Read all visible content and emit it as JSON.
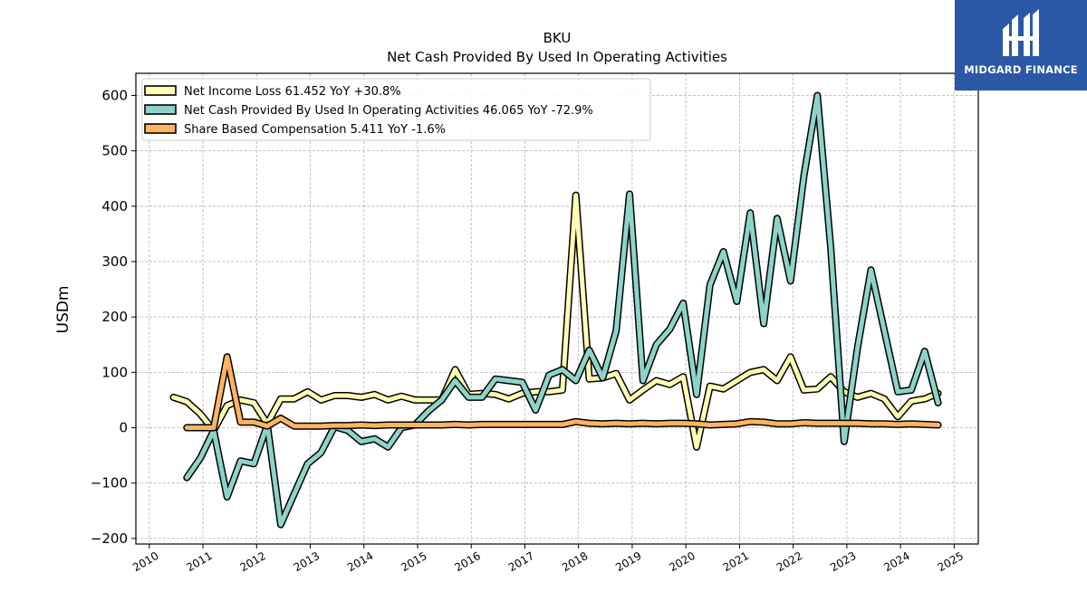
{
  "brand": {
    "name": "MIDGARD FINANCE",
    "color": "#2b58a6"
  },
  "chart_data": {
    "type": "line",
    "title": "BKU",
    "subtitle": "Net Cash Provided By Used In Operating Activities",
    "ylabel": "USDm",
    "xlabel": "",
    "xlim": [
      2009.75,
      2025.45
    ],
    "ylim": [
      -210,
      640
    ],
    "yticks": [
      -200,
      -100,
      0,
      100,
      200,
      300,
      400,
      500,
      600
    ],
    "ytick_labels": [
      "−200",
      "−100",
      "0",
      "100",
      "200",
      "300",
      "400",
      "500",
      "600"
    ],
    "xticks": [
      2010,
      2011,
      2012,
      2013,
      2014,
      2015,
      2016,
      2017,
      2018,
      2019,
      2020,
      2021,
      2022,
      2023,
      2024,
      2025
    ],
    "xtick_labels": [
      "2010",
      "2011",
      "2012",
      "2013",
      "2014",
      "2015",
      "2016",
      "2017",
      "2018",
      "2019",
      "2020",
      "2021",
      "2022",
      "2023",
      "2024",
      "2025"
    ],
    "grid": true,
    "legend_position": "top-left",
    "series": [
      {
        "name": "Net Income Loss",
        "legend_label": "Net Income Loss  61.452 YoY +30.8%",
        "color": "#ffffb3",
        "x": [
          2010.45,
          2010.7,
          2010.95,
          2011.2,
          2011.45,
          2011.7,
          2011.95,
          2012.2,
          2012.45,
          2012.7,
          2012.95,
          2013.2,
          2013.45,
          2013.7,
          2013.95,
          2014.2,
          2014.45,
          2014.7,
          2014.95,
          2015.2,
          2015.45,
          2015.7,
          2015.95,
          2016.2,
          2016.45,
          2016.7,
          2016.95,
          2017.2,
          2017.45,
          2017.7,
          2017.95,
          2018.2,
          2018.45,
          2018.7,
          2018.95,
          2019.2,
          2019.45,
          2019.7,
          2019.95,
          2020.2,
          2020.45,
          2020.7,
          2020.95,
          2021.2,
          2021.45,
          2021.7,
          2021.95,
          2022.2,
          2022.45,
          2022.7,
          2022.95,
          2023.2,
          2023.45,
          2023.7,
          2023.95,
          2024.2,
          2024.45,
          2024.7
        ],
        "values": [
          55,
          47,
          25,
          -5,
          40,
          50,
          45,
          7,
          52,
          52,
          65,
          50,
          58,
          58,
          55,
          60,
          50,
          57,
          50,
          50,
          50,
          105,
          60,
          62,
          60,
          52,
          62,
          65,
          65,
          68,
          420,
          88,
          90,
          98,
          50,
          68,
          85,
          78,
          92,
          -35,
          75,
          70,
          85,
          100,
          105,
          85,
          128,
          68,
          70,
          92,
          65,
          55,
          62,
          52,
          20,
          48,
          52,
          62
        ]
      },
      {
        "name": "Net Cash Provided By Used In Operating Activities",
        "legend_label": "Net Cash Provided By Used In Operating Activities  46.065 YoY -72.9%",
        "color": "#8dd3c7",
        "x": [
          2010.7,
          2010.95,
          2011.2,
          2011.45,
          2011.7,
          2011.95,
          2012.2,
          2012.45,
          2012.7,
          2012.95,
          2013.2,
          2013.45,
          2013.7,
          2013.95,
          2014.2,
          2014.45,
          2014.7,
          2014.95,
          2015.2,
          2015.45,
          2015.7,
          2015.95,
          2016.2,
          2016.45,
          2016.7,
          2016.95,
          2017.2,
          2017.45,
          2017.7,
          2017.95,
          2018.2,
          2018.45,
          2018.7,
          2018.95,
          2019.2,
          2019.45,
          2019.7,
          2019.95,
          2020.2,
          2020.45,
          2020.7,
          2020.95,
          2021.2,
          2021.45,
          2021.7,
          2021.95,
          2022.2,
          2022.45,
          2022.7,
          2022.95,
          2023.2,
          2023.45,
          2023.7,
          2023.95,
          2024.2,
          2024.45,
          2024.7
        ],
        "values": [
          -90,
          -55,
          -5,
          -125,
          -60,
          -65,
          5,
          -175,
          -120,
          -65,
          -45,
          2,
          -5,
          -25,
          -20,
          -35,
          0,
          5,
          30,
          50,
          85,
          55,
          55,
          88,
          85,
          82,
          32,
          95,
          105,
          85,
          140,
          90,
          175,
          422,
          85,
          150,
          178,
          225,
          60,
          258,
          318,
          228,
          388,
          188,
          378,
          265,
          455,
          600,
          325,
          -25,
          145,
          285,
          175,
          65,
          68,
          138,
          45
        ]
      },
      {
        "name": "Share Based Compensation",
        "legend_label": "Share Based Compensation  5.411 YoY -1.6%",
        "color": "#fdb462",
        "x": [
          2010.7,
          2010.95,
          2011.2,
          2011.45,
          2011.7,
          2011.95,
          2012.2,
          2012.45,
          2012.7,
          2012.95,
          2013.2,
          2013.45,
          2013.7,
          2013.95,
          2014.2,
          2014.45,
          2014.7,
          2014.95,
          2015.2,
          2015.45,
          2015.7,
          2015.95,
          2016.2,
          2016.45,
          2016.7,
          2016.95,
          2017.2,
          2017.45,
          2017.7,
          2017.95,
          2018.2,
          2018.45,
          2018.7,
          2018.95,
          2019.2,
          2019.45,
          2019.7,
          2019.95,
          2020.2,
          2020.45,
          2020.7,
          2020.95,
          2021.2,
          2021.45,
          2021.7,
          2021.95,
          2022.2,
          2022.45,
          2022.7,
          2022.95,
          2023.2,
          2023.45,
          2023.7,
          2023.95,
          2024.2,
          2024.45,
          2024.7
        ],
        "values": [
          0,
          0,
          0,
          128,
          10,
          10,
          3,
          17,
          3,
          3,
          3,
          4,
          4,
          5,
          4,
          5,
          5,
          5,
          5,
          5,
          6,
          5,
          6,
          6,
          6,
          6,
          6,
          6,
          6,
          11,
          8,
          7,
          8,
          7,
          8,
          7,
          8,
          8,
          7,
          5,
          6,
          7,
          11,
          10,
          7,
          7,
          9,
          8,
          8,
          8,
          8,
          7,
          7,
          6,
          7,
          6,
          5
        ]
      }
    ]
  }
}
